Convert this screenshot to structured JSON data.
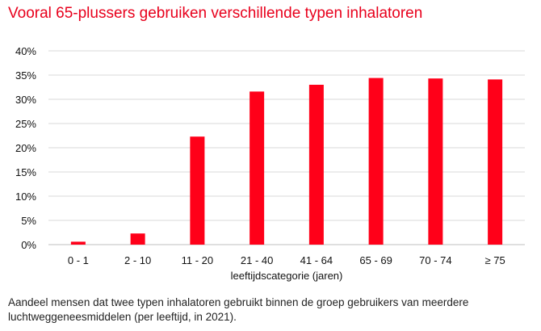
{
  "header": {
    "title": "Vooral 65-plussers gebruiken verschillende typen inhalatoren"
  },
  "footer": {
    "caption": "Aandeel mensen dat twee typen inhalatoren gebruikt binnen de groep gebruikers van meerdere luchtweggeneesmiddelen (per leeftijd, in 2021)."
  },
  "chart_data": {
    "type": "bar",
    "title": "Vooral 65-plussers gebruiken verschillende typen inhalatoren",
    "xlabel": "leeftijdscategorie (jaren)",
    "ylabel": "",
    "categories": [
      "0 - 1",
      "2 - 10",
      "11 - 20",
      "21 - 40",
      "41 - 64",
      "65 - 69",
      "70 - 74",
      "≥ 75"
    ],
    "values": [
      0.6,
      2.3,
      22.3,
      31.6,
      33.0,
      34.4,
      34.3,
      34.1
    ],
    "ylim": [
      0,
      40
    ],
    "yticks": [
      "0%",
      "5%",
      "10%",
      "15%",
      "20%",
      "25%",
      "30%",
      "35%",
      "40%"
    ],
    "grid": true,
    "legend": "none",
    "bar_color": "#ff0019",
    "grid_color": "#d9d9d9"
  }
}
